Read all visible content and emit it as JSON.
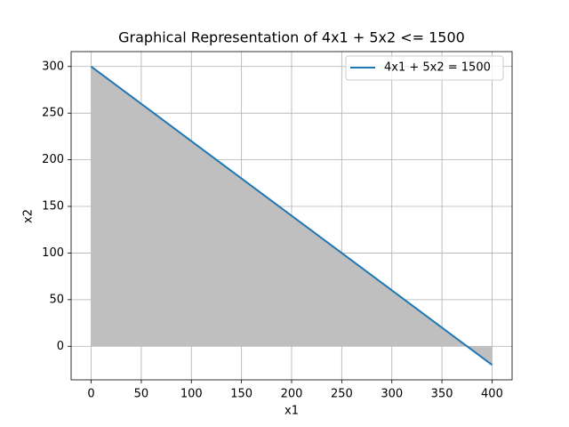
{
  "chart_data": {
    "type": "line",
    "title": "Graphical Representation of 4x1 + 5x2 <= 1500",
    "x_label": "x1",
    "y_label": "x2",
    "x": [
      0,
      400
    ],
    "series": [
      {
        "name": "4x1 + 5x2 = 1500",
        "color": "#1f77b4",
        "values": [
          300,
          -20
        ]
      }
    ],
    "fill_color": "#bfbfbf",
    "xlim": [
      -20,
      420
    ],
    "xticks": [
      0,
      50,
      100,
      150,
      200,
      250,
      300,
      350,
      400
    ],
    "ylim": [
      -36,
      316
    ],
    "yticks": [
      0,
      50,
      100,
      150,
      200,
      250,
      300
    ],
    "grid": true,
    "legend": "upper right"
  }
}
